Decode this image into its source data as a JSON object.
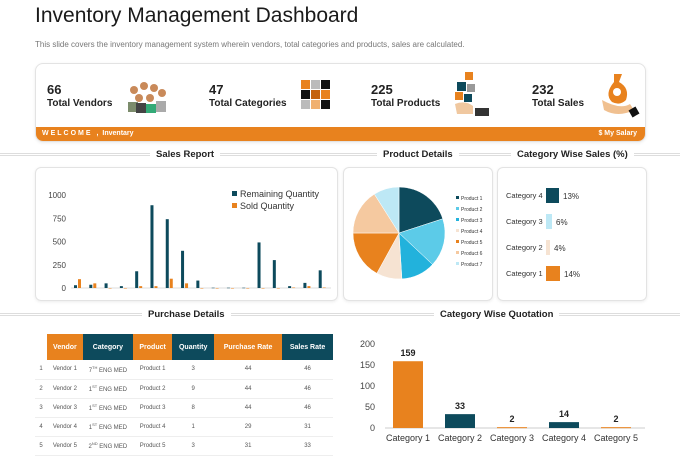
{
  "title": "Inventory Management Dashboard",
  "subtitle": "This slide covers the inventory management system wherein vendors, total categories and products, sales are calculated.",
  "kpis": [
    {
      "value": "66",
      "label": "Total Vendors",
      "icon": "people-group-icon"
    },
    {
      "value": "47",
      "label": "Total Categories",
      "icon": "grid-squares-icon"
    },
    {
      "value": "225",
      "label": "Total Products",
      "icon": "product-boxes-icon"
    },
    {
      "value": "232",
      "label": "Total Sales",
      "icon": "money-bag-hand-icon"
    }
  ],
  "banner": {
    "welcome": "WELCOME ,",
    "user": "Inventary",
    "right": "$ My Salary"
  },
  "sections": {
    "sales_report": "Sales Report",
    "product_details": "Product Details",
    "category_sales": "Category Wise Sales (%)",
    "purchase_details": "Purchase Details",
    "category_quotation": "Category Wise Quotation"
  },
  "colors": {
    "orange": "#e8821e",
    "dark": "#0d4a5c"
  },
  "chart_data": [
    {
      "type": "bar",
      "title": "Sales Report",
      "ylim": [
        0,
        1000
      ],
      "yticks": [
        0,
        250,
        500,
        750,
        1000
      ],
      "legend": "top-right",
      "series": [
        {
          "name": "Remaining Quantity",
          "color": "#0d4a5c",
          "values": [
            30,
            35,
            50,
            20,
            180,
            890,
            740,
            400,
            80,
            3,
            3,
            3,
            490,
            300,
            20,
            55,
            190
          ]
        },
        {
          "name": "Sold Quantity",
          "color": "#e8821e",
          "values": [
            95,
            50,
            0,
            0,
            20,
            20,
            100,
            50,
            0,
            0,
            0,
            0,
            0,
            0,
            5,
            20,
            5
          ]
        }
      ]
    },
    {
      "type": "pie",
      "title": "Product Details",
      "labels": [
        "Product 1",
        "Product 2",
        "Product 3",
        "Product 4",
        "Product 5",
        "Product 6",
        "Product 7"
      ],
      "values": [
        20,
        17,
        12,
        9,
        17,
        16,
        9
      ],
      "colors": [
        "#0d4a5c",
        "#5ccbe8",
        "#22b2dc",
        "#f6e3d2",
        "#e8821e",
        "#f5c9a0",
        "#bde8f5"
      ]
    },
    {
      "type": "bar",
      "title": "Category Wise Sales (%)",
      "categories": [
        "Category 4",
        "Category 3",
        "Category 2",
        "Category 1"
      ],
      "values": [
        13,
        6,
        4,
        14
      ],
      "labels": [
        "13%",
        "6%",
        "4%",
        "14%"
      ],
      "colors": [
        "#0d4a5c",
        "#bde8f5",
        "#f6e3d2",
        "#e8821e"
      ]
    },
    {
      "type": "bar",
      "title": "Category Wise Quotation",
      "categories": [
        "Category 1",
        "Category 2",
        "Category 3",
        "Category 4",
        "Category 5"
      ],
      "values": [
        159,
        33,
        2,
        14,
        2
      ],
      "ylim": [
        0,
        200
      ],
      "yticks": [
        0,
        50,
        100,
        150,
        200
      ],
      "colors": [
        "#e8821e",
        "#0d4a5c",
        "#e8821e",
        "#0d4a5c",
        "#e8821e"
      ]
    }
  ],
  "table": {
    "headers": [
      "Vendor",
      "Category",
      "Product",
      "Quantity",
      "Purchase Rate",
      "Sales Rate"
    ],
    "rows": [
      [
        "1",
        "Vendor 1",
        "7",
        "TH",
        "ENG MED",
        "Product 1",
        "3",
        "44",
        "46"
      ],
      [
        "2",
        "Vendor 2",
        "1",
        "ST",
        "ENG MED",
        "Product 2",
        "9",
        "44",
        "46"
      ],
      [
        "3",
        "Vendor 3",
        "1",
        "ST",
        "ENG MED",
        "Product 3",
        "8",
        "44",
        "46"
      ],
      [
        "4",
        "Vendor 4",
        "1",
        "ST",
        "ENG MED",
        "Product 4",
        "1",
        "29",
        "31"
      ],
      [
        "5",
        "Vendor 5",
        "2",
        "ND",
        "ENG MED",
        "Product 5",
        "3",
        "31",
        "33"
      ]
    ]
  }
}
